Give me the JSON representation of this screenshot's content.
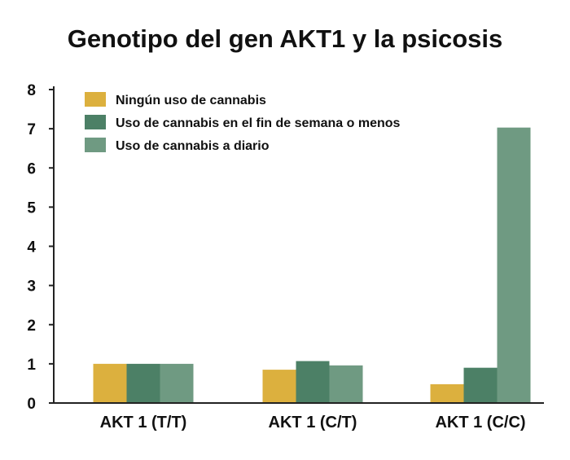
{
  "chart_data": {
    "type": "bar",
    "title": "Genotipo del gen AKT1 y la psicosis",
    "xlabel": "",
    "ylabel": "",
    "ylim": [
      0,
      8
    ],
    "yticks": [
      "0",
      "1",
      "2",
      "3",
      "4",
      "5",
      "6",
      "7",
      "8"
    ],
    "categories": [
      "AKT 1 (T/T)",
      "AKT 1 (C/T)",
      "AKT 1 (C/C)"
    ],
    "legend_position": "top-left",
    "grid": false,
    "series": [
      {
        "name": "Ningún uso de cannabis",
        "color": "#dcb03e",
        "values": [
          1.0,
          0.85,
          0.48
        ]
      },
      {
        "name": "Uso de cannabis en el fin de semana o menos",
        "color": "#4c8066",
        "values": [
          1.0,
          1.07,
          0.9
        ]
      },
      {
        "name": "Uso de cannabis a diario",
        "color": "#6f9a82",
        "values": [
          1.0,
          0.96,
          7.03
        ]
      }
    ]
  }
}
